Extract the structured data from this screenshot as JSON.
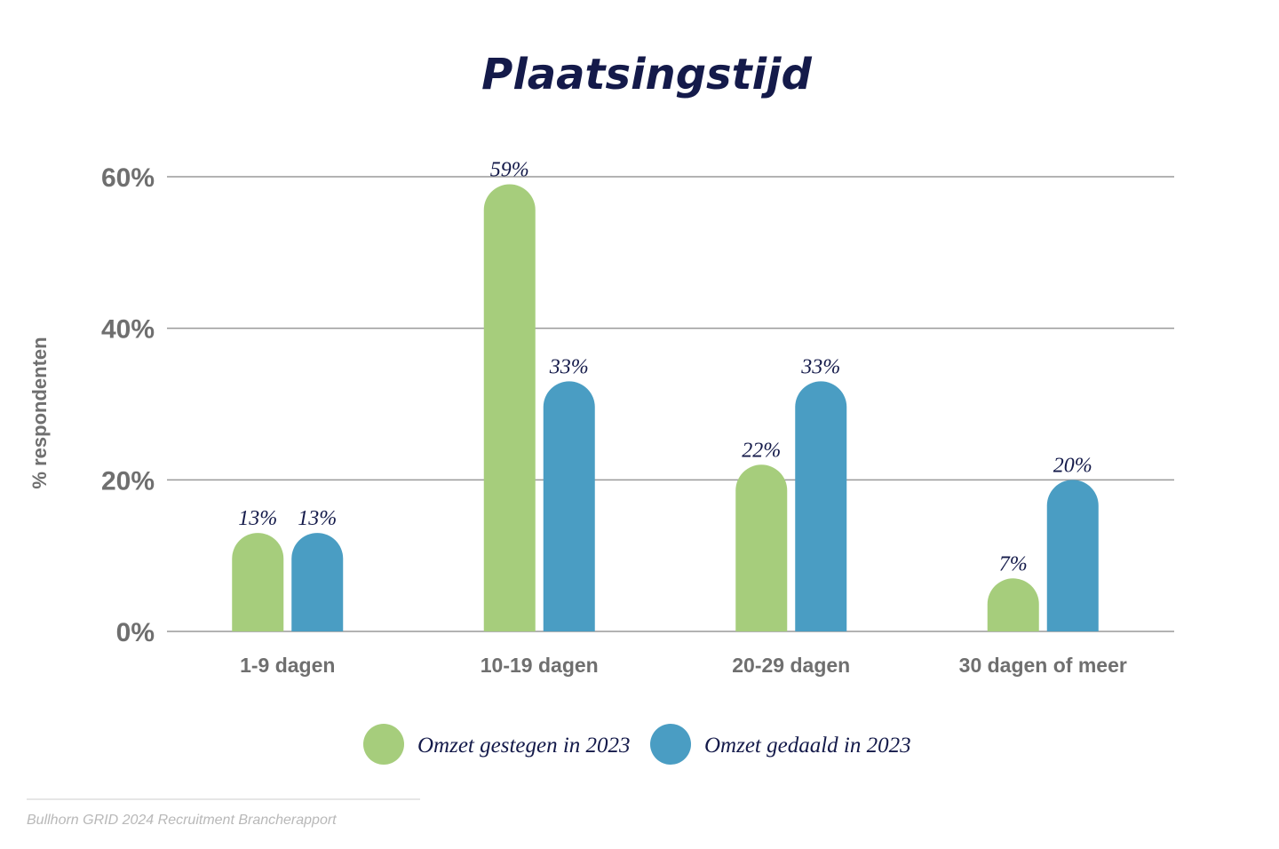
{
  "chart_data": {
    "type": "bar",
    "title": "Plaatsingstijd",
    "ylabel": "% respondenten",
    "xlabel": "",
    "ylim": [
      0,
      60
    ],
    "yticks": [
      0,
      20,
      40,
      60
    ],
    "ytick_labels": [
      "0%",
      "20%",
      "40%",
      "60%"
    ],
    "grid": true,
    "legend_position": "bottom",
    "categories": [
      "1-9 dagen",
      "10-19 dagen",
      "20-29 dagen",
      "30 dagen of meer"
    ],
    "series": [
      {
        "name": "Omzet gestegen in 2023",
        "color": "#a6cd7c",
        "values": [
          13,
          59,
          22,
          7
        ],
        "labels": [
          "13%",
          "59%",
          "22%",
          "7%"
        ]
      },
      {
        "name": "Omzet gedaald in 2023",
        "color": "#4a9dc3",
        "values": [
          13,
          33,
          33,
          20
        ],
        "labels": [
          "13%",
          "33%",
          "33%",
          "20%"
        ]
      }
    ]
  },
  "footer": {
    "source": "Bullhorn GRID 2024 Recruitment Brancherapport"
  },
  "colors": {
    "title": "#141a4a",
    "axis_text": "#6f6f6f",
    "gridline": "#9a9a9a",
    "footer": "#b8b8b8"
  }
}
